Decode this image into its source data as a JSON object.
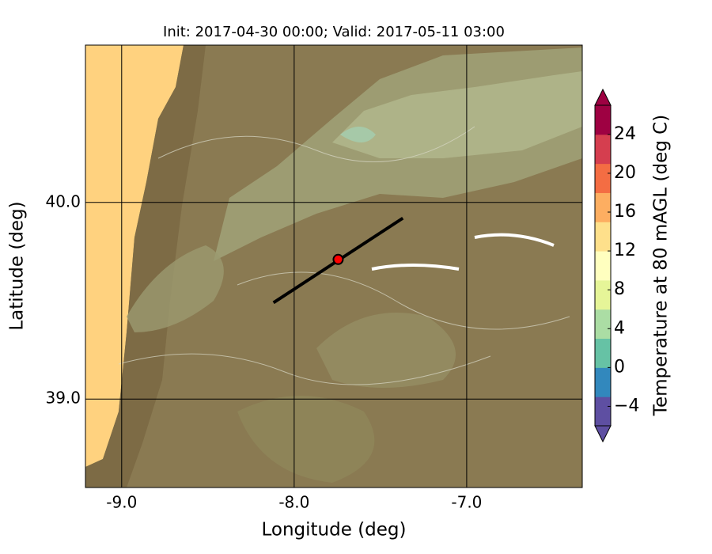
{
  "chart_data": {
    "type": "map",
    "title": "Init: 2017-04-30 00:00; Valid: 2017-05-11 03:00",
    "x_label": "Longitude (deg)",
    "y_label": "Latitude (deg)",
    "xlim": [
      -9.21,
      -6.33
    ],
    "ylim": [
      38.55,
      40.8
    ],
    "xticks": [
      {
        "value": -9,
        "label": "-9.0"
      },
      {
        "value": -8,
        "label": "-8.0"
      },
      {
        "value": -7,
        "label": "-7.0"
      }
    ],
    "yticks": [
      {
        "value": 39,
        "label": "39.0"
      },
      {
        "value": 40,
        "label": "40.0"
      }
    ],
    "grid": true,
    "track": {
      "x": [
        -8.12,
        -7.37
      ],
      "y": [
        39.49,
        39.92
      ],
      "color": "#000000"
    },
    "point": {
      "x": -7.745,
      "y": 39.71,
      "color": "#ff0000"
    },
    "colorbar": {
      "label": "Temperature at 80 mAGL (deg C)",
      "clim": [
        -6,
        27
      ],
      "ticks": [
        {
          "value": -4,
          "label": "−4"
        },
        0,
        4,
        8,
        12,
        16,
        20,
        24
      ],
      "colors": [
        "#5e4fa2",
        "#3288bd",
        "#66c2a5",
        "#abdda4",
        "#e6f598",
        "#ffffbf",
        "#fee08b",
        "#fdae61",
        "#f46d43",
        "#d53e4f",
        "#9e0142"
      ]
    }
  }
}
